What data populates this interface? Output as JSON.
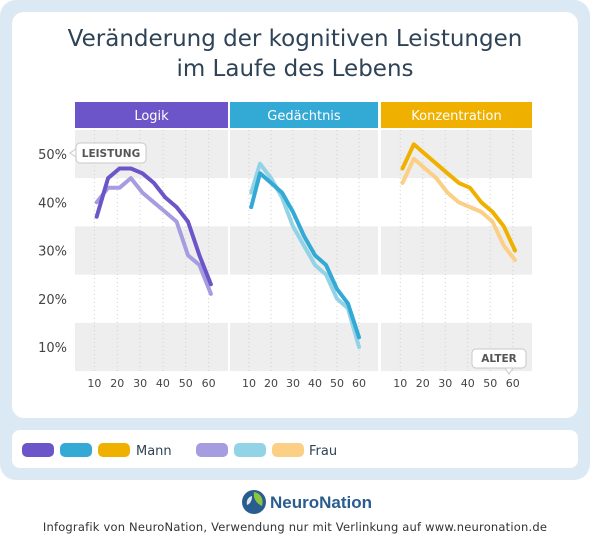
{
  "title_line1": "Veränderung der kognitiven Leistungen",
  "title_line2": "im Laufe des Lebens",
  "y_axis_tag": "LEISTUNG",
  "x_axis_tag": "ALTER",
  "legend": {
    "male_label": "Mann",
    "female_label": "Frau"
  },
  "brand": {
    "logo_text": "NeuroNation"
  },
  "footer": "Infografik von NeuroNation, Verwendung nur mit Verlinkung auf www.neuronation.de",
  "colors": {
    "logik": "#6c55c8",
    "logik_light": "#a69de0",
    "gedaechtnis": "#33a9d6",
    "gedaechtnis_light": "#93d3e6",
    "konzentration": "#f0b000",
    "konzentration_light": "#fbcf85",
    "band": "#eeeeee",
    "title": "#2f4356"
  },
  "chart_data": {
    "type": "line",
    "ylim": [
      5,
      55
    ],
    "y_ticks": [
      10,
      20,
      30,
      40,
      50
    ],
    "y_tick_labels": [
      "10%",
      "20%",
      "30%",
      "40%",
      "50%"
    ],
    "x_ticks": [
      10,
      20,
      30,
      40,
      50,
      60
    ],
    "x_tick_labels": [
      "10",
      "20",
      "30",
      "40",
      "50",
      "60"
    ],
    "xlim": [
      5,
      65
    ],
    "panels": [
      {
        "name": "Logik",
        "series": [
          {
            "name": "Mann",
            "x": [
              11,
              16,
              21,
              26,
              31,
              36,
              41,
              46,
              51,
              56,
              61
            ],
            "y": [
              37,
              45,
              47,
              47,
              46,
              44,
              41,
              39,
              36,
              29,
              23
            ]
          },
          {
            "name": "Frau",
            "x": [
              11,
              16,
              21,
              26,
              31,
              36,
              41,
              46,
              51,
              56,
              61
            ],
            "y": [
              40,
              43,
              43,
              45,
              42,
              40,
              38,
              36,
              29,
              27,
              21
            ]
          }
        ]
      },
      {
        "name": "Gedächtnis",
        "series": [
          {
            "name": "Mann",
            "x": [
              11,
              15,
              20,
              25,
              30,
              35,
              40,
              45,
              50,
              55,
              60
            ],
            "y": [
              39,
              46,
              44,
              42,
              38,
              33,
              29,
              27,
              22,
              19,
              12
            ]
          },
          {
            "name": "Frau",
            "x": [
              11,
              15,
              20,
              25,
              30,
              35,
              40,
              45,
              50,
              55,
              60
            ],
            "y": [
              42,
              48,
              45,
              41,
              35,
              31,
              27,
              25,
              20,
              18,
              10
            ]
          }
        ]
      },
      {
        "name": "Konzentration",
        "series": [
          {
            "name": "Mann",
            "x": [
              11,
              16,
              21,
              26,
              31,
              36,
              41,
              46,
              51,
              56,
              61
            ],
            "y": [
              47,
              52,
              50,
              48,
              46,
              44,
              43,
              40,
              38,
              35,
              30
            ]
          },
          {
            "name": "Frau",
            "x": [
              11,
              16,
              21,
              26,
              31,
              36,
              41,
              46,
              51,
              56,
              61
            ],
            "y": [
              44,
              49,
              47,
              45,
              42,
              40,
              39,
              38,
              36,
              31,
              28
            ]
          }
        ]
      }
    ]
  }
}
